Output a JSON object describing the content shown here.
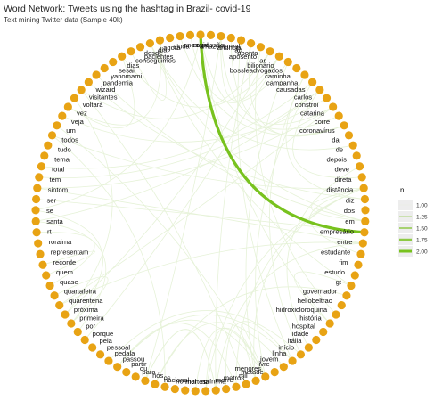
{
  "title": "Word Network: Tweets using the hashtag in Brazil- covid-19",
  "subtitle": "Text mining Twitter data (Sample 40k)",
  "colors": {
    "node": "#E8A314",
    "edge_light": "#E6F2D8",
    "edge_strong": "#78C21E",
    "legend_bg": "#EDEDED"
  },
  "legend": {
    "title": "n",
    "entries": [
      "1.00",
      "1.25",
      "1.50",
      "1.75",
      "2.00"
    ]
  },
  "nodes": [
    "covid",
    "agressão",
    "amazoniareal",
    "anuncia",
    "ao",
    "aponta",
    "aposento",
    "ar",
    "bilionário",
    "bossleadvogados",
    "caminha",
    "campanha",
    "causadas",
    "carlos",
    "constrói",
    "catarina",
    "corre",
    "coronavírus",
    "da",
    "de",
    "depois",
    "deve",
    "direta",
    "distância",
    "diz",
    "dos",
    "em",
    "empresário",
    "entre",
    "estudante",
    "fim",
    "estudo",
    "gt",
    "governador",
    "heliobeltrao",
    "hidroxicloroquina",
    "história",
    "hospital",
    "idade",
    "itália",
    "início",
    "linha",
    "jovem",
    "livre",
    "menores",
    "metade",
    "mil",
    "metros",
    "morre",
    "mínima",
    "na",
    "mortes",
    "normal",
    "nacional",
    "os",
    "nós",
    "para",
    "ou",
    "partir",
    "passou",
    "pedala",
    "pessoal",
    "pela",
    "porque",
    "por",
    "primeira",
    "próxima",
    "quarentena",
    "quartafeira",
    "quase",
    "quem",
    "recorde",
    "representam",
    "roraima",
    "rt",
    "santa",
    "se",
    "ser",
    "sintom",
    "tem",
    "total",
    "tema",
    "tudo",
    "todos",
    "um",
    "veja",
    "vez",
    "voltará",
    "visitantes",
    "wizard",
    "pandemia",
    "yanomami",
    "sesai",
    "dias",
    "conseguimos",
    "pacientes",
    "desde",
    "dia",
    "agora",
    "ajuda",
    "anos"
  ],
  "edges": [
    {
      "from": "covid",
      "to": "empresário",
      "n": 2.0
    }
  ]
}
